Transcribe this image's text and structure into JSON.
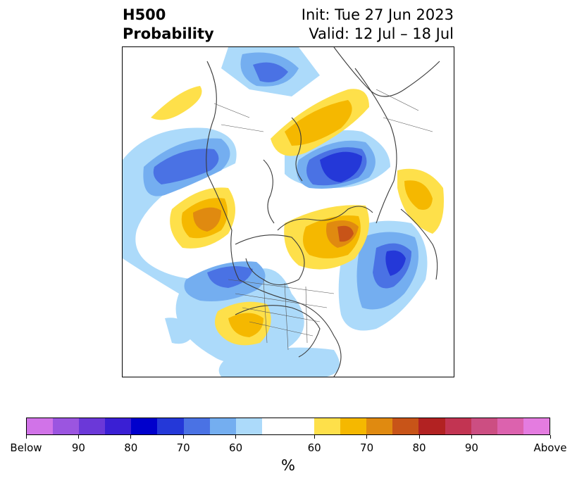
{
  "header": {
    "title_line1": "H500",
    "title_line2": "Probability",
    "init_text": "Init: Tue 27 Jun 2023",
    "valid_text": "Valid: 12 Jul – 18 Jul"
  },
  "colorbar": {
    "unit": "%",
    "colors": [
      "#d173e8",
      "#9b55e0",
      "#6b38d8",
      "#3a1fd4",
      "#0000cc",
      "#2438d8",
      "#4a72e4",
      "#74aef0",
      "#acdafa",
      "#ffffff",
      "#ffffff",
      "#fee04a",
      "#f5b800",
      "#e08a10",
      "#c85418",
      "#b22222",
      "#c23452",
      "#cc4e82",
      "#dc62ae",
      "#e47ce0"
    ],
    "tick_labels": [
      "Below",
      "90",
      "80",
      "70",
      "60",
      "60",
      "70",
      "80",
      "90",
      "Above"
    ]
  }
}
